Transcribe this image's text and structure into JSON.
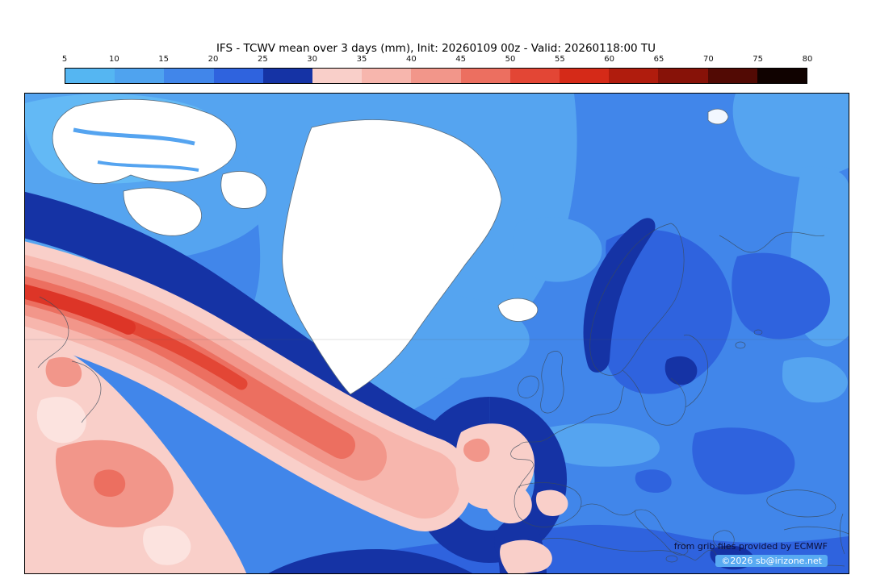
{
  "title": "IFS - TCWV mean over 3 days (mm), Init: 20260109 00z - Valid: 20260118:00 TU",
  "colorbar": {
    "ticks": [
      "5",
      "10",
      "15",
      "20",
      "25",
      "30",
      "35",
      "40",
      "45",
      "50",
      "55",
      "60",
      "65",
      "70",
      "75",
      "80"
    ],
    "segment_colors": [
      "#55b6f2",
      "#4fa3ef",
      "#4186ea",
      "#2f63de",
      "#1533a5",
      "#f9cfc9",
      "#f7b6ad",
      "#f2968a",
      "#ec6f60",
      "#e34635",
      "#d52a18",
      "#b01c0d",
      "#871208",
      "#520a04",
      "#100200"
    ]
  },
  "map": {
    "credit_line1": "from grib files provided by ECMWF",
    "credit_line2": "©2026 sb@irizone.net"
  },
  "chart_data": {
    "type": "heatmap",
    "title": "IFS - TCWV mean over 3 days (mm)",
    "init_time": "20260109 00z",
    "valid_time": "20260118:00 TU",
    "units": "mm",
    "colorbar_ticks": [
      5,
      10,
      15,
      20,
      25,
      30,
      35,
      40,
      45,
      50,
      55,
      60,
      65,
      70,
      75,
      80
    ],
    "colorbar_colors": [
      "#55b6f2",
      "#4fa3ef",
      "#4186ea",
      "#2f63de",
      "#1533a5",
      "#f9cfc9",
      "#f7b6ad",
      "#f2968a",
      "#ec6f60",
      "#e34635",
      "#d52a18",
      "#b01c0d",
      "#871208",
      "#520a04",
      "#100200"
    ],
    "field_palette": {
      "low_tcwv_white": "#ffffff",
      "blue_5_10": "#63b9f5",
      "blue_10_15": "#55a4f0",
      "blue_15_20": "#4186ea",
      "blue_20_25": "#2f63de",
      "blue_25_30": "#1533a5",
      "pink_30_35": "#f9cfc9",
      "pink_35_40": "#f7b6ad",
      "salmon_40_45": "#f2968a",
      "coral_45_50": "#ec6f60",
      "red_50_55": "#e34635"
    }
  }
}
